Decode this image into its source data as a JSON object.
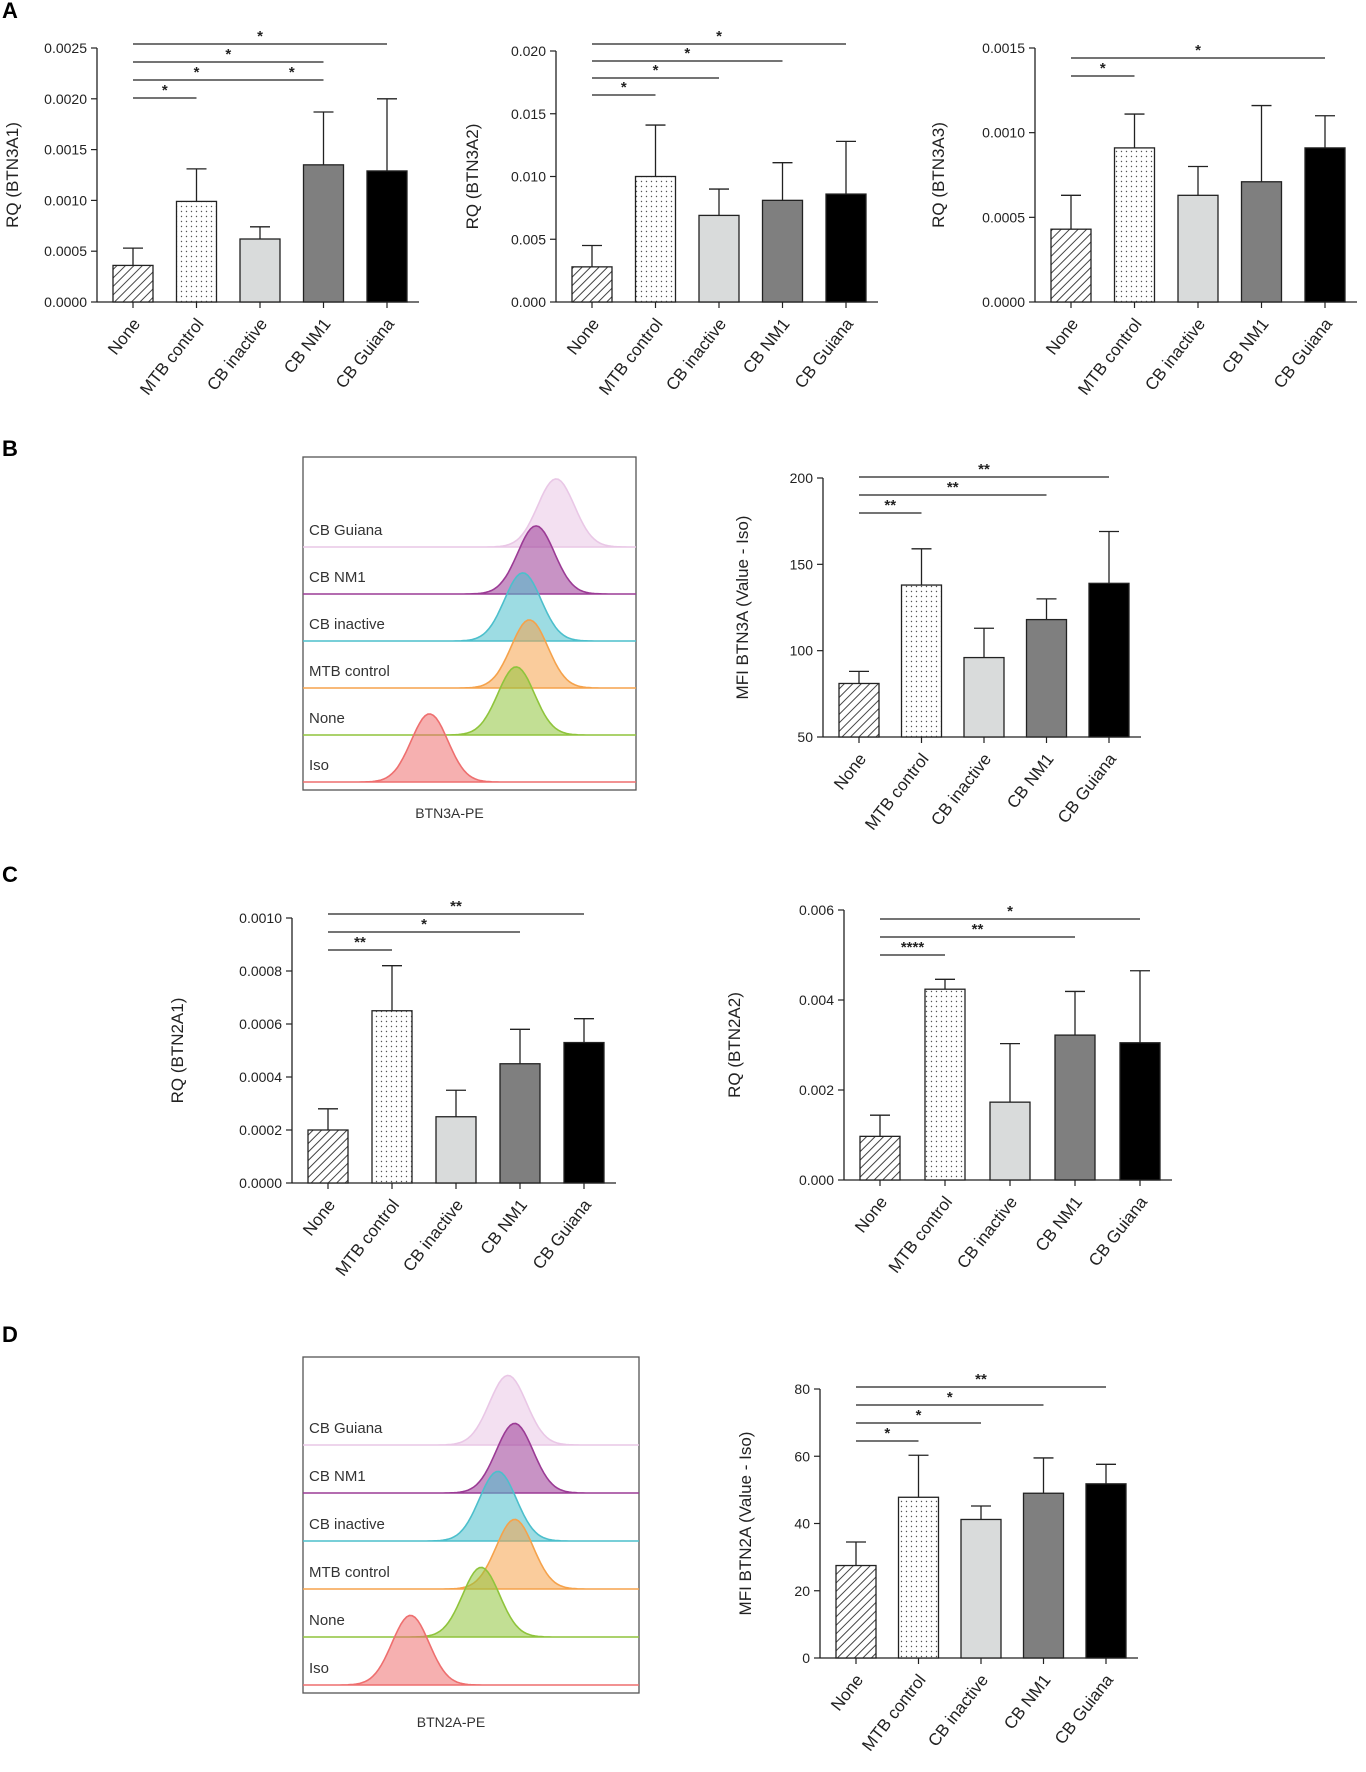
{
  "colors": {
    "none": "#ffffff",
    "mtb": "#ffffff",
    "inactive": "#d9dbdb",
    "nm1": "#7f7f7f",
    "guiana": "#000000"
  },
  "histogram_colors": {
    "CB Guiana": "#e9c7e6",
    "CB NM1": "#9b3b95",
    "CB inactive": "#4cbfcc",
    "MTB control": "#f5a24b",
    "None": "#8fc43c",
    "Iso": "#ee6f6f"
  },
  "panels": [
    {
      "letter": "A"
    },
    {
      "letter": "B"
    },
    {
      "letter": "C"
    },
    {
      "letter": "D"
    }
  ],
  "chart_data": [
    {
      "panel": "A",
      "type": "bar",
      "categories": [
        "None",
        "MTB control",
        "CB inactive",
        "CB NM1",
        "CB Guiana"
      ],
      "values": [
        0.00036,
        0.00099,
        0.00062,
        0.00135,
        0.00129
      ],
      "errors": [
        0.00017,
        0.00032,
        0.00012,
        0.00052,
        0.00071
      ],
      "ylabel": "RQ (BTN3A1)",
      "ylim": [
        0,
        0.0025
      ],
      "yticks": [
        "0.0000",
        "0.0005",
        "0.0010",
        "0.0015",
        "0.0020",
        "0.0025"
      ],
      "significance": [
        {
          "from": 0,
          "to": 1,
          "label": "*"
        },
        {
          "from": 0,
          "to": 2,
          "label": "*"
        },
        {
          "from": 2,
          "to": 3,
          "label": "*"
        },
        {
          "from": 0,
          "to": 3,
          "label": "*"
        },
        {
          "from": 0,
          "to": 4,
          "label": "*"
        }
      ]
    },
    {
      "panel": "A",
      "type": "bar",
      "categories": [
        "None",
        "MTB control",
        "CB inactive",
        "CB NM1",
        "CB Guiana"
      ],
      "values": [
        0.0028,
        0.01,
        0.0069,
        0.0081,
        0.0086
      ],
      "errors": [
        0.0017,
        0.0041,
        0.0021,
        0.003,
        0.0042
      ],
      "ylabel": "RQ (BTN3A2)",
      "ylim": [
        0,
        0.02
      ],
      "yticks": [
        "0.000",
        "0.005",
        "0.010",
        "0.015",
        "0.020"
      ],
      "significance": [
        {
          "from": 0,
          "to": 1,
          "label": "*"
        },
        {
          "from": 0,
          "to": 2,
          "label": "*"
        },
        {
          "from": 0,
          "to": 3,
          "label": "*"
        },
        {
          "from": 0,
          "to": 4,
          "label": "*"
        }
      ]
    },
    {
      "panel": "A",
      "type": "bar",
      "categories": [
        "None",
        "MTB control",
        "CB inactive",
        "CB NM1",
        "CB Guiana"
      ],
      "values": [
        0.00043,
        0.00091,
        0.00063,
        0.00071,
        0.00091
      ],
      "errors": [
        0.0002,
        0.0002,
        0.00017,
        0.00045,
        0.00019
      ],
      "ylabel": "RQ (BTN3A3)",
      "ylim": [
        0,
        0.0015
      ],
      "yticks": [
        "0.0000",
        "0.0005",
        "0.0010",
        "0.0015"
      ],
      "significance": [
        {
          "from": 0,
          "to": 1,
          "label": "*"
        },
        {
          "from": 0,
          "to": 4,
          "label": "*"
        }
      ]
    },
    {
      "panel": "B",
      "type": "bar",
      "categories": [
        "None",
        "MTB control",
        "CB inactive",
        "CB NM1",
        "CB Guiana"
      ],
      "values": [
        81,
        138,
        96,
        118,
        139
      ],
      "errors": [
        7,
        21,
        17,
        12,
        30
      ],
      "ylabel": "MFI BTN3A (Value - Iso)",
      "ylim": [
        50,
        200
      ],
      "yticks": [
        "50",
        "100",
        "150",
        "200"
      ],
      "significance": [
        {
          "from": 0,
          "to": 1,
          "label": "**"
        },
        {
          "from": 0,
          "to": 3,
          "label": "**"
        },
        {
          "from": 0,
          "to": 4,
          "label": "**"
        }
      ]
    },
    {
      "panel": "C",
      "type": "bar",
      "categories": [
        "None",
        "MTB control",
        "CB inactive",
        "CB NM1",
        "CB Guiana"
      ],
      "values": [
        0.0002,
        0.00065,
        0.00025,
        0.00045,
        0.00053
      ],
      "errors": [
        8e-05,
        0.00017,
        0.0001,
        0.00013,
        9e-05
      ],
      "ylabel": "RQ (BTN2A1)",
      "ylim": [
        0,
        0.001
      ],
      "yticks": [
        "0.0000",
        "0.0002",
        "0.0004",
        "0.0006",
        "0.0008",
        "0.0010"
      ],
      "significance": [
        {
          "from": 0,
          "to": 1,
          "label": "**"
        },
        {
          "from": 0,
          "to": 3,
          "label": "*"
        },
        {
          "from": 0,
          "to": 4,
          "label": "**"
        }
      ]
    },
    {
      "panel": "C",
      "type": "bar",
      "categories": [
        "None",
        "MTB control",
        "CB inactive",
        "CB NM1",
        "CB Guiana"
      ],
      "values": [
        0.00097,
        0.00424,
        0.00173,
        0.00322,
        0.00305
      ],
      "errors": [
        0.00047,
        0.00022,
        0.0013,
        0.00097,
        0.0016
      ],
      "ylabel": "RQ (BTN2A2)",
      "ylim": [
        0,
        0.006
      ],
      "yticks": [
        "0.000",
        "0.002",
        "0.004",
        "0.006"
      ],
      "significance": [
        {
          "from": 0,
          "to": 1,
          "label": "****"
        },
        {
          "from": 0,
          "to": 3,
          "label": "**"
        },
        {
          "from": 0,
          "to": 4,
          "label": "*"
        }
      ]
    },
    {
      "panel": "D",
      "type": "bar",
      "categories": [
        "None",
        "MTB control",
        "CB inactive",
        "CB NM1",
        "CB Guiana"
      ],
      "values": [
        27.5,
        47.8,
        41.2,
        49.0,
        51.8
      ],
      "errors": [
        7,
        12.5,
        4,
        10.5,
        5.8
      ],
      "ylabel": "MFI BTN2A (Value - Iso)",
      "ylim": [
        0,
        80
      ],
      "yticks": [
        "0",
        "20",
        "40",
        "60",
        "80"
      ],
      "significance": [
        {
          "from": 0,
          "to": 1,
          "label": "*"
        },
        {
          "from": 0,
          "to": 2,
          "label": "*"
        },
        {
          "from": 0,
          "to": 3,
          "label": "*"
        },
        {
          "from": 0,
          "to": 4,
          "label": "**"
        }
      ]
    }
  ],
  "histograms": [
    {
      "panel": "B",
      "xlabel": "BTN3A-PE",
      "tracks": [
        {
          "label": "CB Guiana",
          "color_key": "CB Guiana",
          "peak": 0.76
        },
        {
          "label": "CB NM1",
          "color_key": "CB NM1",
          "peak": 0.7
        },
        {
          "label": "CB inactive",
          "color_key": "CB inactive",
          "peak": 0.66
        },
        {
          "label": "MTB control",
          "color_key": "MTB control",
          "peak": 0.68
        },
        {
          "label": "None",
          "color_key": "None",
          "peak": 0.64
        },
        {
          "label": "Iso",
          "color_key": "Iso",
          "peak": 0.38
        }
      ]
    },
    {
      "panel": "D",
      "xlabel": "BTN2A-PE",
      "tracks": [
        {
          "label": "CB Guiana",
          "color_key": "CB Guiana",
          "peak": 0.61
        },
        {
          "label": "CB NM1",
          "color_key": "CB NM1",
          "peak": 0.63
        },
        {
          "label": "CB inactive",
          "color_key": "CB inactive",
          "peak": 0.58
        },
        {
          "label": "MTB control",
          "color_key": "MTB control",
          "peak": 0.63
        },
        {
          "label": "None",
          "color_key": "None",
          "peak": 0.53
        },
        {
          "label": "Iso",
          "color_key": "Iso",
          "peak": 0.32
        }
      ]
    }
  ]
}
